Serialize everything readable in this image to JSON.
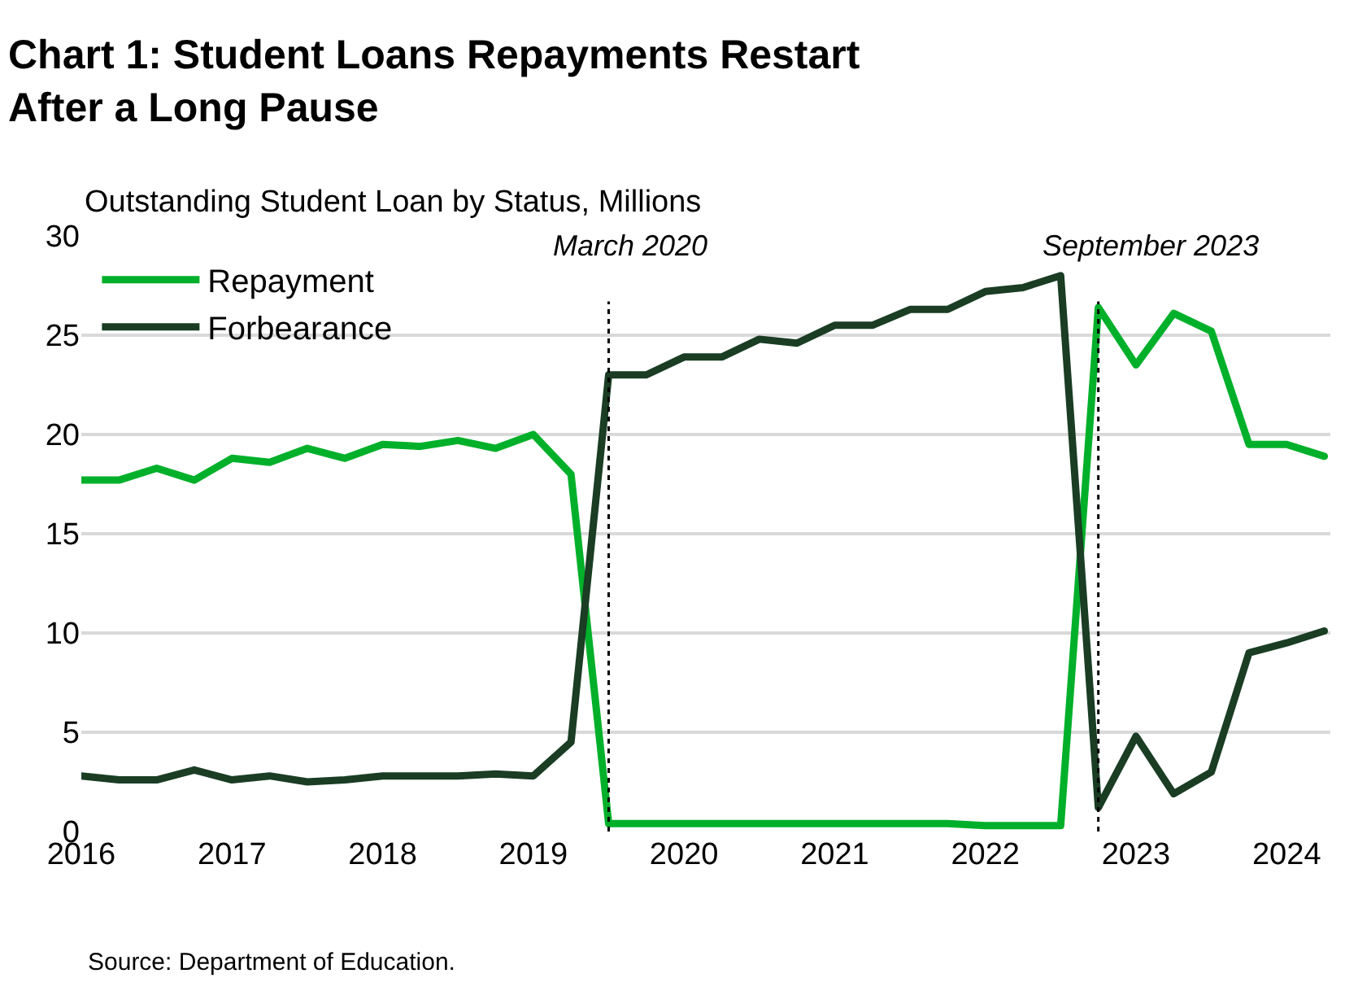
{
  "chart_data": {
    "type": "line",
    "title": "Chart 1: Student Loans Repayments Restart\nAfter a Long Pause",
    "subtitle": "Outstanding Student Loan by Status, Millions",
    "x": [
      2016.0,
      2016.25,
      2016.5,
      2016.75,
      2017.0,
      2017.25,
      2017.5,
      2017.75,
      2018.0,
      2018.25,
      2018.5,
      2018.75,
      2019.0,
      2019.25,
      2019.5,
      2019.75,
      2020.0,
      2020.25,
      2020.5,
      2020.75,
      2021.0,
      2021.25,
      2021.5,
      2021.75,
      2022.0,
      2022.25,
      2022.5,
      2022.75,
      2023.0,
      2023.25,
      2023.5,
      2023.75,
      2024.0,
      2024.25
    ],
    "series": [
      {
        "name": "Repayment",
        "color": "#00b02a",
        "values": [
          17.7,
          17.7,
          18.3,
          17.7,
          18.8,
          18.6,
          19.3,
          18.8,
          19.5,
          19.4,
          19.7,
          19.3,
          20.0,
          18.0,
          0.4,
          0.4,
          0.4,
          0.4,
          0.4,
          0.4,
          0.4,
          0.4,
          0.4,
          0.4,
          0.3,
          0.3,
          0.3,
          26.4,
          23.5,
          26.1,
          25.2,
          19.5,
          19.5,
          18.9
        ]
      },
      {
        "name": "Forbearance",
        "color": "#1a3d24",
        "values": [
          2.8,
          2.6,
          2.6,
          3.1,
          2.6,
          2.8,
          2.5,
          2.6,
          2.8,
          2.8,
          2.8,
          2.9,
          2.8,
          4.5,
          23.0,
          23.0,
          23.9,
          23.9,
          24.8,
          24.6,
          25.5,
          25.5,
          26.3,
          26.3,
          27.2,
          27.4,
          28.0,
          1.2,
          4.8,
          1.9,
          3.0,
          9.0,
          9.5,
          10.1
        ]
      }
    ],
    "xlim": [
      2016,
      2024.29
    ],
    "xticks": [
      2016,
      2017,
      2018,
      2019,
      2020,
      2021,
      2022,
      2023,
      2024
    ],
    "ylim": [
      0,
      30
    ],
    "yticks": [
      0,
      5,
      10,
      15,
      20,
      25,
      30
    ],
    "ref_lines": [
      {
        "axis": "x",
        "value": 2019.5,
        "label": "March 2020",
        "color": "#000000",
        "line_style": "dotted"
      },
      {
        "axis": "x",
        "value": 2022.75,
        "label": "September 2023",
        "color": "#000000",
        "line_style": "dotted"
      }
    ],
    "annotations": [
      "Source: Department of Education."
    ],
    "grid": "y",
    "legend": "top left",
    "line_style": "solid",
    "marker": "none"
  }
}
